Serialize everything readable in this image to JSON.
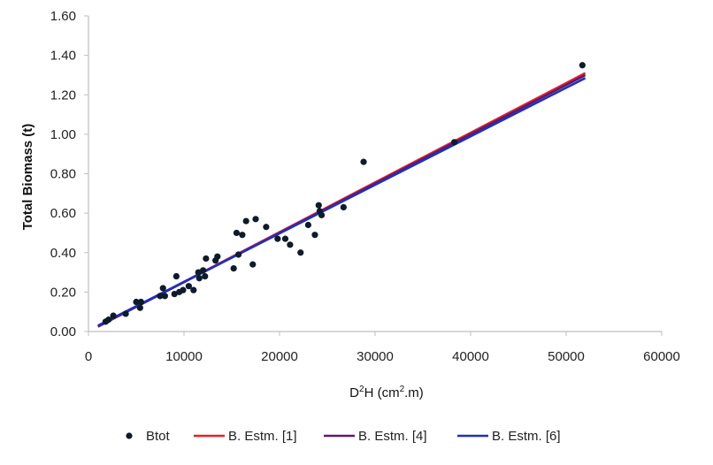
{
  "chart_data": {
    "type": "scatter",
    "title": "",
    "xlabel_main": "D",
    "xlabel_sup": "2",
    "xlabel_rest": "H (cm",
    "xlabel_sup2": "2",
    "xlabel_end": ".m)",
    "ylabel": "Total Biomass (t)",
    "xlim": [
      0,
      60000
    ],
    "ylim": [
      0,
      1.6
    ],
    "x_ticks": [
      0,
      10000,
      20000,
      30000,
      40000,
      50000,
      60000
    ],
    "x_tick_labels": [
      "0",
      "10000",
      "20000",
      "30000",
      "40000",
      "50000",
      "60000"
    ],
    "y_ticks": [
      0,
      0.2,
      0.4,
      0.6,
      0.8,
      1.0,
      1.2,
      1.4,
      1.6
    ],
    "y_tick_labels": [
      "0.00",
      "0.20",
      "0.40",
      "0.60",
      "0.80",
      "1.00",
      "1.20",
      "1.40",
      "1.60"
    ],
    "grid": false,
    "legend_position": "bottom",
    "points_series": {
      "name": "Btot",
      "color": "#0d1b2a",
      "x": [
        1800,
        2100,
        2600,
        3900,
        5000,
        5400,
        5500,
        7500,
        7800,
        8000,
        9000,
        9200,
        9500,
        9900,
        10500,
        11000,
        11500,
        11600,
        12000,
        12200,
        12300,
        13300,
        13500,
        15200,
        15500,
        15700,
        16100,
        16500,
        17200,
        17500,
        18600,
        19800,
        20600,
        21100,
        22200,
        23000,
        23700,
        24100,
        24200,
        24400,
        26700,
        28800,
        38300,
        51700
      ],
      "y": [
        0.05,
        0.06,
        0.08,
        0.09,
        0.15,
        0.12,
        0.15,
        0.18,
        0.22,
        0.18,
        0.19,
        0.28,
        0.2,
        0.21,
        0.23,
        0.21,
        0.3,
        0.27,
        0.31,
        0.28,
        0.37,
        0.36,
        0.38,
        0.32,
        0.5,
        0.39,
        0.49,
        0.56,
        0.34,
        0.57,
        0.53,
        0.47,
        0.47,
        0.44,
        0.4,
        0.54,
        0.49,
        0.64,
        0.61,
        0.59,
        0.63,
        0.86,
        0.96,
        1.35
      ]
    },
    "line_series": [
      {
        "name": "B. Estm. [1]",
        "color": "#e8202a",
        "x": [
          1000,
          52000
        ],
        "y": [
          0.025,
          1.31
        ]
      },
      {
        "name": "B. Estm. [4]",
        "color": "#5b1a6e",
        "x": [
          1000,
          52000
        ],
        "y": [
          0.025,
          1.3
        ]
      },
      {
        "name": "B. Estm. [6]",
        "color": "#1f2fbf",
        "x": [
          1000,
          52000
        ],
        "y": [
          0.03,
          1.285
        ]
      }
    ]
  }
}
